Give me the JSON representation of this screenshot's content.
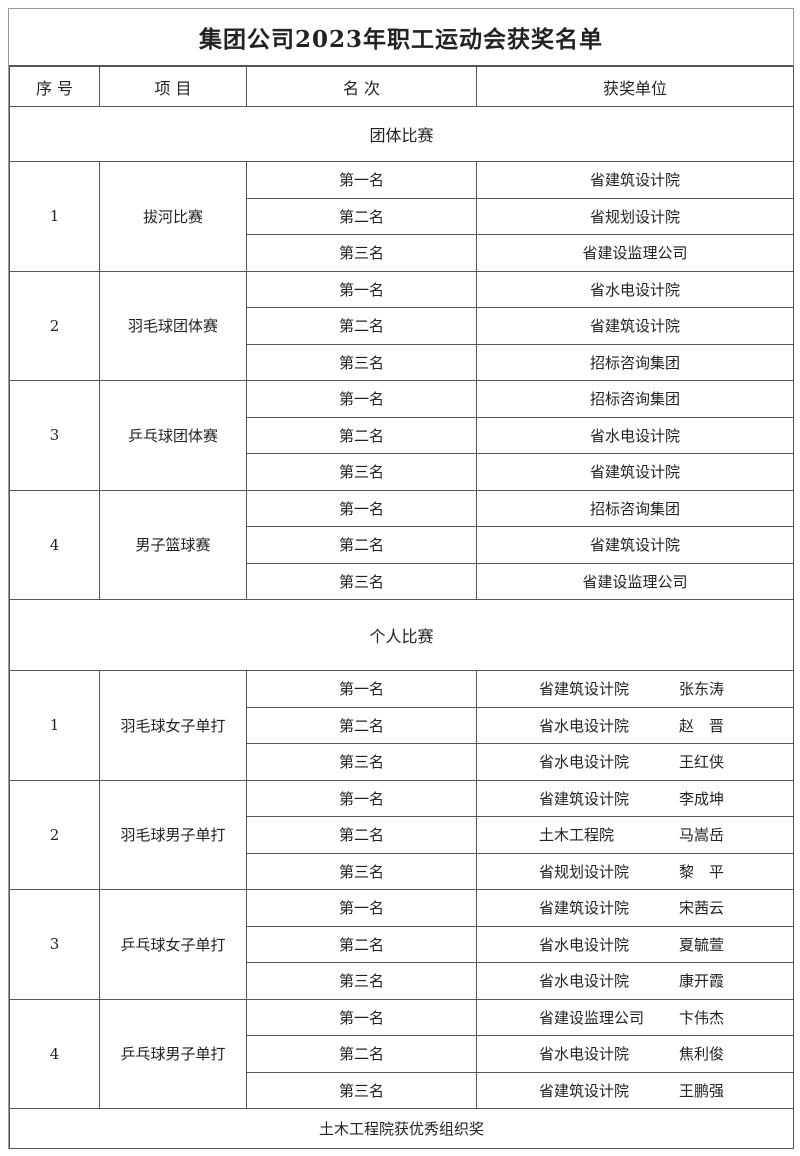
{
  "title": "集团公司2023年职工运动会获奖名单",
  "headers": {
    "seq": "序 号",
    "event": "项 目",
    "rank": "名 次",
    "winner": "获奖单位"
  },
  "team_section": {
    "label": "团体比赛",
    "events": [
      {
        "seq": "1",
        "name": "拔河比赛",
        "results": [
          {
            "rank": "第一名",
            "unit": "省建筑设计院"
          },
          {
            "rank": "第二名",
            "unit": "省规划设计院"
          },
          {
            "rank": "第三名",
            "unit": "省建设监理公司"
          }
        ]
      },
      {
        "seq": "2",
        "name": "羽毛球团体赛",
        "results": [
          {
            "rank": "第一名",
            "unit": "省水电设计院"
          },
          {
            "rank": "第二名",
            "unit": "省建筑设计院"
          },
          {
            "rank": "第三名",
            "unit": "招标咨询集团"
          }
        ]
      },
      {
        "seq": "3",
        "name": "乒乓球团体赛",
        "results": [
          {
            "rank": "第一名",
            "unit": "招标咨询集团"
          },
          {
            "rank": "第二名",
            "unit": "省水电设计院"
          },
          {
            "rank": "第三名",
            "unit": "省建筑设计院"
          }
        ]
      },
      {
        "seq": "4",
        "name": "男子篮球赛",
        "results": [
          {
            "rank": "第一名",
            "unit": "招标咨询集团"
          },
          {
            "rank": "第二名",
            "unit": "省建筑设计院"
          },
          {
            "rank": "第三名",
            "unit": "省建设监理公司"
          }
        ]
      }
    ]
  },
  "individual_section": {
    "label": "个人比赛",
    "events": [
      {
        "seq": "1",
        "name": "羽毛球女子单打",
        "results": [
          {
            "rank": "第一名",
            "unit": "省建筑设计院",
            "person": "张东涛"
          },
          {
            "rank": "第二名",
            "unit": "省水电设计院",
            "person": "赵　晋"
          },
          {
            "rank": "第三名",
            "unit": "省水电设计院",
            "person": "王红侠"
          }
        ]
      },
      {
        "seq": "2",
        "name": "羽毛球男子单打",
        "results": [
          {
            "rank": "第一名",
            "unit": "省建筑设计院",
            "person": "李成坤"
          },
          {
            "rank": "第二名",
            "unit": "土木工程院",
            "person": "马嵩岳"
          },
          {
            "rank": "第三名",
            "unit": "省规划设计院",
            "person": "黎　平"
          }
        ]
      },
      {
        "seq": "3",
        "name": "乒乓球女子单打",
        "results": [
          {
            "rank": "第一名",
            "unit": "省建筑设计院",
            "person": "宋茜云"
          },
          {
            "rank": "第二名",
            "unit": "省水电设计院",
            "person": "夏毓萱"
          },
          {
            "rank": "第三名",
            "unit": "省水电设计院",
            "person": "康开霞"
          }
        ]
      },
      {
        "seq": "4",
        "name": "乒乓球男子单打",
        "results": [
          {
            "rank": "第一名",
            "unit": "省建设监理公司",
            "person": "卞伟杰"
          },
          {
            "rank": "第二名",
            "unit": "省水电设计院",
            "person": "焦利俊"
          },
          {
            "rank": "第三名",
            "unit": "省建筑设计院",
            "person": "王鹏强"
          }
        ]
      }
    ]
  },
  "footer": "土木工程院获优秀组织奖"
}
